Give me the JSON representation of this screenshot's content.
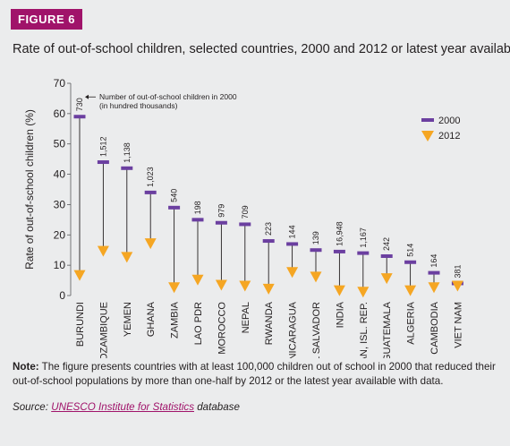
{
  "figure_label": "FIGURE 6",
  "title": "Rate of out-of-school children, selected countries, 2000 and 2012 or latest year available",
  "note": {
    "label": "Note:",
    "text": " The figure presents countries with at least 100,000 children out of school in 2000 that reduced their out-of-school populations by more than one-half by 2012 or the latest year available with data."
  },
  "source": {
    "label": "Source:",
    "link_text": "UNESCO Institute for Statistics",
    "suffix": " database"
  },
  "colors": {
    "year2000": "#6b3fa0",
    "year2012": "#f5a623",
    "badge": "#a0136a",
    "line": "#231f20"
  },
  "chart_data": {
    "type": "dot-range",
    "ylabel": "Rate of out-of-school children (%)",
    "ylim": [
      0,
      70
    ],
    "yticks": [
      0,
      10,
      20,
      30,
      40,
      50,
      60,
      70
    ],
    "grid": false,
    "legend_position": "top-right",
    "annotation": "Number of out-of-school children in 2000\n(in hundred thousands)",
    "categories": [
      "BURUNDI",
      "MOZAMBIQUE",
      "YEMEN",
      "GHANA",
      "ZAMBIA",
      "LAO PDR",
      "MOROCCO",
      "NEPAL",
      "RWANDA",
      "NICARAGUA",
      "EL SALVADOR",
      "INDIA",
      "IRAN, ISL. REP.",
      "GUATEMALA",
      "ALGERIA",
      "CAMBODIA",
      "VIET NAM"
    ],
    "counts_2000": [
      "730",
      "1,512",
      "1,138",
      "1,023",
      "540",
      "198",
      "979",
      "709",
      "223",
      "144",
      "139",
      "16,948",
      "1,167",
      "242",
      "514",
      "164",
      "381"
    ],
    "series": [
      {
        "name": "2000",
        "marker": "bar",
        "values": [
          59,
          44,
          42,
          34,
          29,
          25,
          24,
          23.5,
          18,
          17,
          15,
          14.5,
          14,
          13,
          11,
          7.5,
          4
        ]
      },
      {
        "name": "2012",
        "marker": "triangle-down",
        "values": [
          6,
          14,
          12,
          16.5,
          2,
          4.5,
          2.8,
          2.5,
          1.5,
          7,
          5.5,
          1,
          0.5,
          5,
          1,
          2,
          2.5
        ]
      }
    ]
  }
}
